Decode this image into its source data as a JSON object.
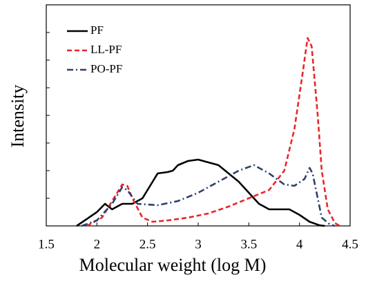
{
  "chart_data": {
    "type": "line",
    "xlabel": "Molecular weight (log M)",
    "ylabel": "Intensity",
    "xlim": [
      1.5,
      4.5
    ],
    "xticks": [
      1.5,
      2,
      2.5,
      3,
      3.5,
      4,
      4.5
    ],
    "ylim": [
      0,
      8
    ],
    "yticks": [
      0,
      1,
      2,
      3,
      4,
      5,
      6,
      7,
      8
    ],
    "legend": "upper left",
    "series": [
      {
        "name": "PF",
        "color": "#000000",
        "dash": "solid",
        "x": [
          1.8,
          2.0,
          2.08,
          2.15,
          2.25,
          2.35,
          2.45,
          2.55,
          2.6,
          2.7,
          2.75,
          2.8,
          2.9,
          3.0,
          3.05,
          3.2,
          3.4,
          3.6,
          3.7,
          3.9,
          4.0,
          4.1,
          4.2,
          4.25
        ],
        "values": [
          0,
          0.5,
          0.8,
          0.6,
          0.8,
          0.8,
          1.0,
          1.6,
          1.9,
          1.95,
          2.0,
          2.2,
          2.35,
          2.4,
          2.35,
          2.2,
          1.6,
          0.8,
          0.6,
          0.6,
          0.4,
          0.15,
          0.02,
          0
        ]
      },
      {
        "name": "LL-PF",
        "color": "#e8262a",
        "dash": "dashed",
        "x": [
          1.9,
          2.05,
          2.2,
          2.25,
          2.3,
          2.35,
          2.45,
          2.55,
          2.7,
          2.9,
          3.1,
          3.3,
          3.5,
          3.7,
          3.85,
          3.95,
          4.03,
          4.08,
          4.12,
          4.18,
          4.22,
          4.28,
          4.35,
          4.4
        ],
        "values": [
          0,
          0.3,
          1.2,
          1.5,
          1.45,
          1.0,
          0.3,
          0.15,
          0.2,
          0.3,
          0.45,
          0.7,
          1.0,
          1.3,
          2.0,
          3.5,
          5.5,
          6.8,
          6.5,
          4.0,
          2.0,
          0.6,
          0.1,
          0
        ]
      },
      {
        "name": "PO-PF",
        "color": "#2e3f6e",
        "dash": "dashdot",
        "x": [
          1.85,
          2.0,
          2.15,
          2.25,
          2.3,
          2.4,
          2.6,
          2.8,
          3.0,
          3.2,
          3.4,
          3.55,
          3.7,
          3.85,
          3.95,
          4.05,
          4.1,
          4.13,
          4.18,
          4.22,
          4.3,
          4.35
        ],
        "values": [
          0,
          0.2,
          0.8,
          1.4,
          1.3,
          0.8,
          0.75,
          0.9,
          1.2,
          1.6,
          2.0,
          2.2,
          1.9,
          1.5,
          1.45,
          1.7,
          2.1,
          1.9,
          1.0,
          0.3,
          0.05,
          0
        ]
      }
    ]
  }
}
